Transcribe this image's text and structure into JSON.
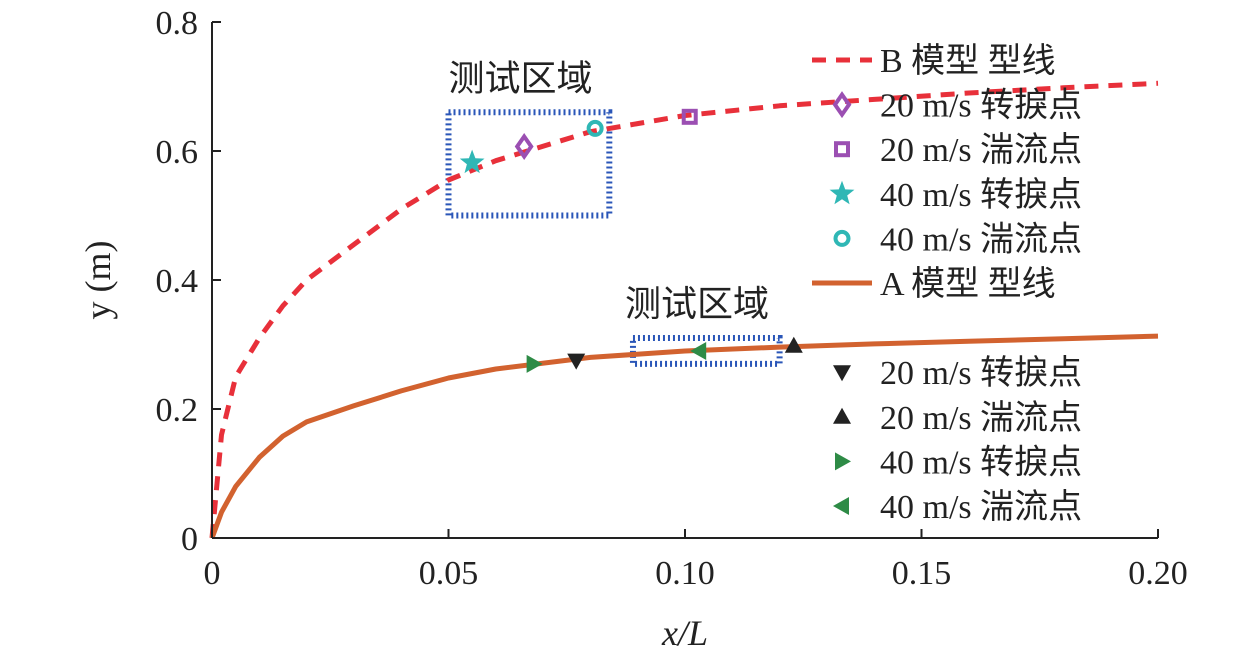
{
  "chart_data": {
    "type": "line",
    "xlabel": "x/L",
    "ylabel": "y (m)",
    "xlim": [
      0,
      0.2
    ],
    "ylim": [
      0,
      0.8
    ],
    "x_ticks": [
      0,
      0.05,
      0.1,
      0.15,
      0.2
    ],
    "x_tick_labels": [
      "0",
      "0.05",
      "0.10",
      "0.15",
      "0.20"
    ],
    "y_ticks": [
      0,
      0.2,
      0.4,
      0.6,
      0.8
    ],
    "y_tick_labels": [
      "0",
      "0.2",
      "0.4",
      "0.6",
      "0.8"
    ],
    "grid": false,
    "legend_position": "right",
    "series": [
      {
        "name": "B 模型 型线",
        "style": "dashed",
        "color": "#e8303a",
        "x": [
          0,
          0.002,
          0.005,
          0.01,
          0.015,
          0.02,
          0.03,
          0.04,
          0.05,
          0.06,
          0.08,
          0.1,
          0.12,
          0.14,
          0.16,
          0.18,
          0.2
        ],
        "y": [
          0,
          0.16,
          0.25,
          0.31,
          0.36,
          0.4,
          0.455,
          0.51,
          0.555,
          0.585,
          0.63,
          0.655,
          0.67,
          0.68,
          0.69,
          0.698,
          0.705
        ]
      },
      {
        "name": "A 模型 型线",
        "style": "solid",
        "color": "#d2622f",
        "x": [
          0,
          0.002,
          0.005,
          0.01,
          0.015,
          0.02,
          0.03,
          0.04,
          0.05,
          0.06,
          0.08,
          0.1,
          0.12,
          0.14,
          0.16,
          0.18,
          0.2
        ],
        "y": [
          0,
          0.04,
          0.08,
          0.125,
          0.158,
          0.18,
          0.205,
          0.228,
          0.248,
          0.262,
          0.28,
          0.29,
          0.296,
          0.301,
          0.305,
          0.309,
          0.313
        ]
      }
    ],
    "markers": [
      {
        "name": "20 m/s 转捩点",
        "shape": "diamond",
        "color": "#9b4fb2",
        "x": 0.066,
        "y": 0.607
      },
      {
        "name": "20 m/s 湍流点",
        "shape": "square",
        "color": "#9b4fb2",
        "x": 0.101,
        "y": 0.653
      },
      {
        "name": "40 m/s 转捩点",
        "shape": "star",
        "color": "#2fb7b5",
        "x": 0.055,
        "y": 0.582
      },
      {
        "name": "40 m/s 湍流点",
        "shape": "circle",
        "color": "#2fb7b5",
        "x": 0.081,
        "y": 0.635
      },
      {
        "name": "20 m/s 转捩点",
        "shape": "triangle-down",
        "color": "#222222",
        "x": 0.077,
        "y": 0.275
      },
      {
        "name": "20 m/s 湍流点",
        "shape": "triangle-up",
        "color": "#222222",
        "x": 0.123,
        "y": 0.298
      },
      {
        "name": "40 m/s 转捩点",
        "shape": "triangle-right",
        "color": "#2e8b46",
        "x": 0.068,
        "y": 0.27
      },
      {
        "name": "40 m/s 湍流点",
        "shape": "triangle-left",
        "color": "#2e8b46",
        "x": 0.103,
        "y": 0.29
      }
    ],
    "regions": [
      {
        "label": "测试区域",
        "x": [
          0.05,
          0.084
        ],
        "y": [
          0.5,
          0.66
        ],
        "color": "#2a56b8"
      },
      {
        "label": "测试区域",
        "x": [
          0.089,
          0.12
        ],
        "y": [
          0.27,
          0.31
        ],
        "color": "#2a56b8"
      }
    ],
    "legend": [
      {
        "kind": "line",
        "series": 0
      },
      {
        "kind": "marker",
        "marker": 0
      },
      {
        "kind": "marker",
        "marker": 1
      },
      {
        "kind": "marker",
        "marker": 2
      },
      {
        "kind": "marker",
        "marker": 3
      },
      {
        "kind": "line",
        "series": 1
      },
      {
        "kind": "gap"
      },
      {
        "kind": "marker",
        "marker": 4
      },
      {
        "kind": "marker",
        "marker": 5
      },
      {
        "kind": "marker",
        "marker": 6
      },
      {
        "kind": "marker",
        "marker": 7
      }
    ]
  }
}
